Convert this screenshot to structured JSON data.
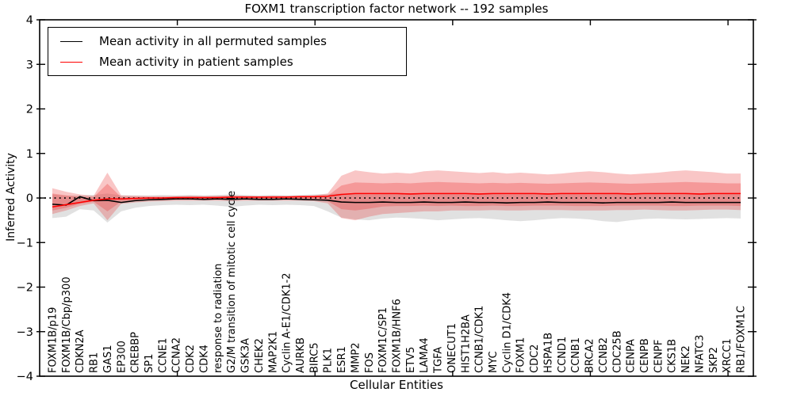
{
  "chart_data": {
    "type": "line",
    "title": "FOXM1 transcription factor network -- 192 samples",
    "xlabel": "Cellular Entities",
    "ylabel": "Inferred Activity",
    "ylim": [
      -4,
      4
    ],
    "yticks": [
      -4,
      -3,
      -2,
      -1,
      0,
      1,
      2,
      3,
      4
    ],
    "xtick_positions": [
      10,
      20,
      30,
      40,
      50
    ],
    "grid": false,
    "legend": {
      "position": "upper left",
      "items": [
        {
          "label": "Mean activity in all permuted samples",
          "color": "#000000"
        },
        {
          "label": "Mean activity in patient samples",
          "color": "#ff0000"
        }
      ]
    },
    "reference_line": {
      "y": 0,
      "style": "dotted",
      "color": "#000000"
    },
    "categories": [
      "FOXM1B/p19",
      "FOXM1B/Cbp/p300",
      "CDKN2A",
      "RB1",
      "GAS1",
      "EP300",
      "CREBBP",
      "SP1",
      "CCNE1",
      "CCNA2",
      "CDK2",
      "CDK4",
      "response to radiation",
      "G2/M transition of mitotic cell cycle",
      "GSK3A",
      "CHEK2",
      "MAP2K1",
      "Cyclin A-E1/CDK1-2",
      "AURKB",
      "BIRC5",
      "PLK1",
      "ESR1",
      "MMP2",
      "FOS",
      "FOXM1C/SP1",
      "FOXM1B/HNF6",
      "ETV5",
      "LAMA4",
      "TGFA",
      "ONECUT1",
      "HIST1H2BA",
      "CCNB1/CDK1",
      "MYC",
      "Cyclin D1/CDK4",
      "FOXM1",
      "CDC2",
      "HSPA1B",
      "CCND1",
      "CCNB1",
      "BRCA2",
      "CCNB2",
      "CDC25B",
      "CENPA",
      "CENPB",
      "CENPF",
      "CKS1B",
      "NEK2",
      "NFATC3",
      "SKP2",
      "XRCC1",
      "RB1/FOXM1C"
    ],
    "series": [
      {
        "name": "Mean activity in all permuted samples",
        "color": "#000000",
        "values": [
          -0.14,
          -0.16,
          0.03,
          -0.06,
          -0.05,
          -0.1,
          -0.06,
          -0.04,
          -0.03,
          -0.02,
          -0.02,
          -0.03,
          -0.02,
          -0.03,
          -0.02,
          -0.03,
          -0.03,
          -0.02,
          -0.03,
          -0.04,
          -0.05,
          -0.09,
          -0.1,
          -0.1,
          -0.09,
          -0.1,
          -0.1,
          -0.09,
          -0.1,
          -0.1,
          -0.09,
          -0.1,
          -0.1,
          -0.11,
          -0.1,
          -0.1,
          -0.09,
          -0.1,
          -0.1,
          -0.1,
          -0.11,
          -0.1,
          -0.1,
          -0.1,
          -0.1,
          -0.09,
          -0.1,
          -0.1,
          -0.1,
          -0.1,
          -0.1
        ]
      },
      {
        "name": "Mean activity in patient samples",
        "color": "#ff0000",
        "values": [
          -0.2,
          -0.15,
          -0.1,
          -0.05,
          -0.02,
          -0.02,
          -0.01,
          0.0,
          0.0,
          0.01,
          0.01,
          0.01,
          0.01,
          0.02,
          0.02,
          0.02,
          0.02,
          0.02,
          0.03,
          0.03,
          0.04,
          0.08,
          0.1,
          0.1,
          0.1,
          0.1,
          0.09,
          0.1,
          0.1,
          0.1,
          0.1,
          0.09,
          0.1,
          0.1,
          0.1,
          0.1,
          0.09,
          0.1,
          0.1,
          0.1,
          0.1,
          0.1,
          0.09,
          0.1,
          0.1,
          0.1,
          0.1,
          0.09,
          0.1,
          0.1,
          0.1
        ]
      }
    ],
    "bands": [
      {
        "name": "permuted-sample-range",
        "color": "rgba(120,120,120,0.22)",
        "upper": [
          0.08,
          0.05,
          0.06,
          0.07,
          0.1,
          0.06,
          0.06,
          0.06,
          0.07,
          0.06,
          0.07,
          0.06,
          0.07,
          0.08,
          0.07,
          0.06,
          0.07,
          0.06,
          0.07,
          0.08,
          0.09,
          0.1,
          0.09,
          0.08,
          0.09,
          0.1,
          0.09,
          0.08,
          0.09,
          0.09,
          0.08,
          0.09,
          0.09,
          0.08,
          0.09,
          0.09,
          0.08,
          0.09,
          0.09,
          0.08,
          0.09,
          0.09,
          0.08,
          0.09,
          0.09,
          0.08,
          0.09,
          0.09,
          0.08,
          0.09,
          0.09
        ],
        "lower": [
          -0.45,
          -0.42,
          -0.25,
          -0.28,
          -0.55,
          -0.3,
          -0.22,
          -0.18,
          -0.16,
          -0.15,
          -0.16,
          -0.15,
          -0.17,
          -0.2,
          -0.17,
          -0.15,
          -0.16,
          -0.15,
          -0.16,
          -0.18,
          -0.3,
          -0.44,
          -0.48,
          -0.5,
          -0.46,
          -0.44,
          -0.45,
          -0.47,
          -0.5,
          -0.48,
          -0.46,
          -0.45,
          -0.47,
          -0.5,
          -0.52,
          -0.5,
          -0.47,
          -0.45,
          -0.46,
          -0.48,
          -0.52,
          -0.54,
          -0.5,
          -0.47,
          -0.46,
          -0.47,
          -0.48,
          -0.47,
          -0.46,
          -0.45,
          -0.46
        ]
      },
      {
        "name": "patient-sample-range-outer",
        "color": "rgba(235,50,50,0.28)",
        "upper": [
          0.22,
          0.14,
          0.08,
          0.05,
          0.57,
          0.06,
          0.05,
          0.04,
          0.04,
          0.04,
          0.05,
          0.04,
          0.05,
          0.06,
          0.05,
          0.04,
          0.05,
          0.05,
          0.05,
          0.06,
          0.1,
          0.5,
          0.62,
          0.58,
          0.55,
          0.57,
          0.55,
          0.6,
          0.62,
          0.6,
          0.58,
          0.56,
          0.58,
          0.55,
          0.57,
          0.55,
          0.53,
          0.55,
          0.58,
          0.6,
          0.58,
          0.55,
          0.53,
          0.55,
          0.57,
          0.6,
          0.62,
          0.6,
          0.58,
          0.55,
          0.55
        ],
        "lower": [
          -0.36,
          -0.28,
          -0.18,
          -0.12,
          -0.5,
          -0.13,
          -0.1,
          -0.08,
          -0.07,
          -0.06,
          -0.06,
          -0.06,
          -0.06,
          -0.07,
          -0.06,
          -0.06,
          -0.06,
          -0.06,
          -0.06,
          -0.07,
          -0.12,
          -0.45,
          -0.5,
          -0.42,
          -0.36,
          -0.34,
          -0.32,
          -0.3,
          -0.3,
          -0.28,
          -0.28,
          -0.28,
          -0.27,
          -0.28,
          -0.28,
          -0.27,
          -0.27,
          -0.27,
          -0.28,
          -0.28,
          -0.28,
          -0.27,
          -0.27,
          -0.26,
          -0.27,
          -0.28,
          -0.28,
          -0.27,
          -0.26,
          -0.26,
          -0.27
        ]
      },
      {
        "name": "patient-sample-range-inner",
        "color": "rgba(235,50,50,0.30)",
        "upper": [
          0.1,
          0.06,
          0.03,
          0.02,
          0.32,
          0.02,
          0.02,
          0.02,
          0.02,
          0.02,
          0.02,
          0.02,
          0.02,
          0.03,
          0.03,
          0.02,
          0.03,
          0.03,
          0.03,
          0.03,
          0.05,
          0.28,
          0.35,
          0.34,
          0.33,
          0.34,
          0.33,
          0.35,
          0.36,
          0.35,
          0.34,
          0.33,
          0.34,
          0.33,
          0.34,
          0.33,
          0.32,
          0.33,
          0.34,
          0.35,
          0.34,
          0.33,
          0.32,
          0.33,
          0.34,
          0.35,
          0.36,
          0.35,
          0.34,
          0.33,
          0.33
        ],
        "lower": [
          -0.28,
          -0.22,
          -0.13,
          -0.08,
          -0.3,
          -0.08,
          -0.06,
          -0.04,
          -0.03,
          -0.03,
          -0.03,
          -0.03,
          -0.03,
          -0.03,
          -0.03,
          -0.03,
          -0.03,
          -0.03,
          -0.03,
          -0.03,
          -0.07,
          -0.25,
          -0.28,
          -0.24,
          -0.19,
          -0.18,
          -0.18,
          -0.17,
          -0.18,
          -0.17,
          -0.18,
          -0.18,
          -0.17,
          -0.18,
          -0.18,
          -0.17,
          -0.17,
          -0.17,
          -0.18,
          -0.18,
          -0.18,
          -0.17,
          -0.17,
          -0.17,
          -0.17,
          -0.18,
          -0.18,
          -0.17,
          -0.17,
          -0.17,
          -0.18
        ]
      }
    ]
  }
}
